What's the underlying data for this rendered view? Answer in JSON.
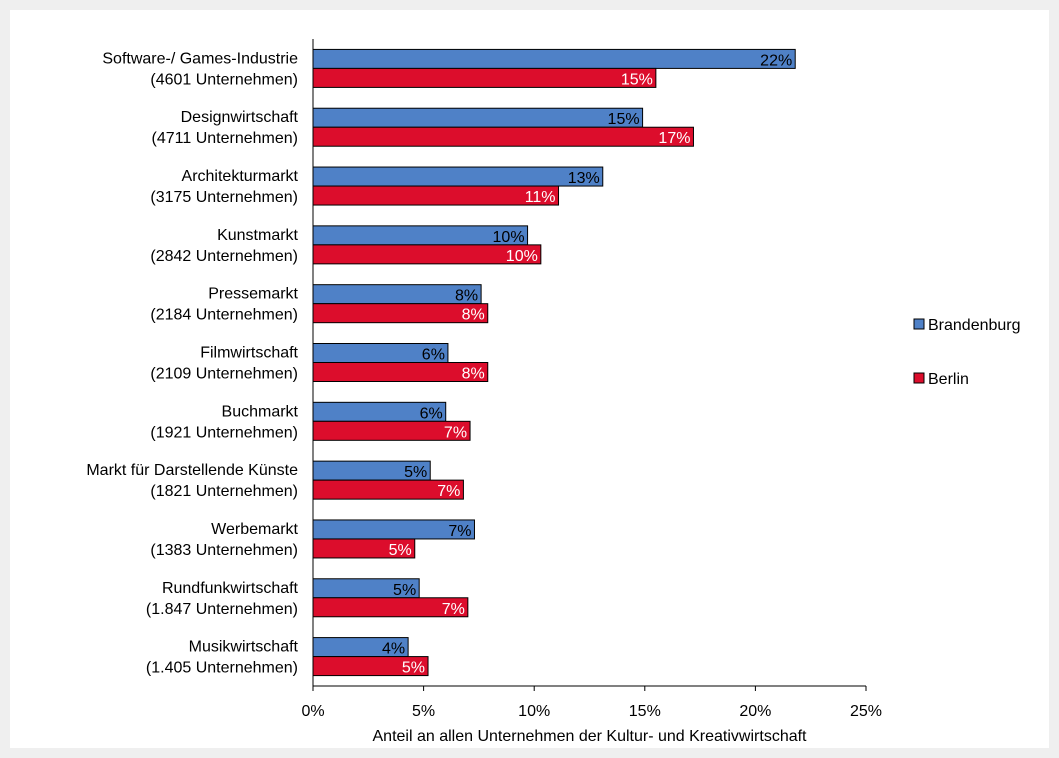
{
  "chart_data": {
    "type": "bar",
    "orientation": "horizontal",
    "categories": [
      [
        "Software-/ Games-Industrie",
        "(4601 Unternehmen)"
      ],
      [
        "Designwirtschaft",
        "(4711 Unternehmen)"
      ],
      [
        "Architekturmarkt",
        "(3175 Unternehmen)"
      ],
      [
        "Kunstmarkt",
        "(2842 Unternehmen)"
      ],
      [
        "Pressemarkt",
        "(2184 Unternehmen)"
      ],
      [
        "Filmwirtschaft",
        "(2109 Unternehmen)"
      ],
      [
        "Buchmarkt",
        "(1921 Unternehmen)"
      ],
      [
        "Markt für Darstellende Künste",
        "(1821 Unternehmen)"
      ],
      [
        "Werbemarkt",
        "(1383 Unternehmen)"
      ],
      [
        "Rundfunkwirtschaft",
        "(1.847 Unternehmen)"
      ],
      [
        "Musikwirtschaft",
        "(1.405 Unternehmen)"
      ]
    ],
    "series": [
      {
        "name": "Brandenburg",
        "color": "#4f81c7",
        "label_color": "#000000",
        "values": [
          21.8,
          14.9,
          13.1,
          9.7,
          7.6,
          6.1,
          6.0,
          5.3,
          7.3,
          4.8,
          4.3
        ],
        "labels": [
          "22%",
          "15%",
          "13%",
          "10%",
          "8%",
          "6%",
          "6%",
          "5%",
          "7%",
          "5%",
          "4%"
        ]
      },
      {
        "name": "Berlin",
        "color": "#dc0d2c",
        "label_color": "#ffffff",
        "values": [
          15.5,
          17.2,
          11.1,
          10.3,
          7.9,
          7.9,
          7.1,
          6.8,
          4.6,
          7.0,
          5.2
        ],
        "labels": [
          "15%",
          "17%",
          "11%",
          "10%",
          "8%",
          "8%",
          "7%",
          "7%",
          "5%",
          "7%",
          "5%"
        ]
      }
    ],
    "xlim": [
      0,
      25
    ],
    "xticks": [
      0,
      5,
      10,
      15,
      20,
      25
    ],
    "xtick_labels": [
      "0%",
      "5%",
      "10%",
      "15%",
      "20%",
      "25%"
    ],
    "xlabel": "Anteil an allen Unternehmen der Kultur- und Kreativwirtschaft",
    "ylabel": "",
    "title": "",
    "grid": false,
    "legend_position": "right"
  }
}
